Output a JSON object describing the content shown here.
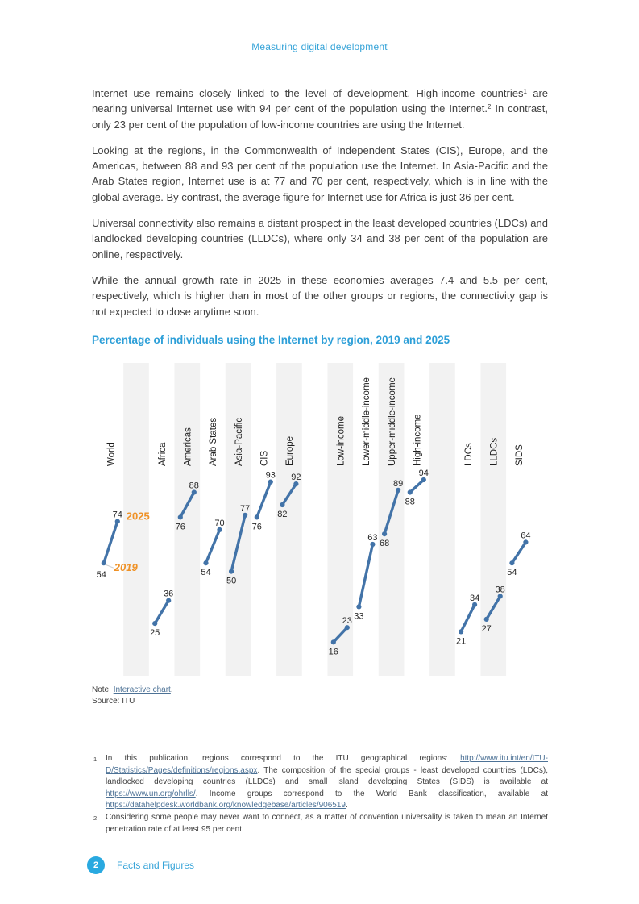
{
  "page": {
    "header": "Measuring digital development",
    "footer": {
      "page_number": "2",
      "label": "Facts and Figures"
    }
  },
  "article": {
    "p1_runs": [
      {
        "t": "Internet use remains closely linked to the level of development. High-income countries"
      },
      {
        "sup": "1"
      },
      {
        "t": " are nearing universal Internet use with 94 per cent of the population using the Internet."
      },
      {
        "sup": "2"
      },
      {
        "t": " In contrast, only 23 per cent of the population of low-income countries are using the Internet."
      }
    ],
    "p2": "Looking at the regions, in the Commonwealth of Independent States (CIS), Europe, and the Americas, between 88 and 93 per cent of the population use the Internet. In Asia-Pacific and the Arab States region, Internet use is at 77 and 70 per cent, respectively, which is in line with the global average. By contrast, the average figure for Internet use for Africa is just 36 per cent.",
    "p3": "Universal connectivity also remains a distant prospect in the least developed countries (LDCs) and landlocked developing countries (LLDCs), where only 34 and 38 per cent of the population are online, respectively.",
    "p4": "While the annual growth rate in 2025 in these economies averages 7.4 and 5.5 per cent, respectively, which is higher than in most of the other groups or regions, the connectivity gap is not expected to close anytime soon."
  },
  "chart_data": {
    "type": "slope",
    "title": "Percentage of individuals using the Internet by region, 2019 and 2025",
    "years": [
      "2019",
      "2025"
    ],
    "value_unit": "per cent of individuals using the Internet",
    "value_range": [
      0,
      100
    ],
    "grid": "alternating vertical stripes, no axes",
    "series": [
      {
        "label": "World",
        "col": 0,
        "v2019": 54,
        "v2025": 74,
        "annotate": true
      },
      {
        "label": "Africa",
        "col": 2,
        "v2019": 25,
        "v2025": 36
      },
      {
        "label": "Americas",
        "col": 3,
        "v2019": 76,
        "v2025": 88
      },
      {
        "label": "Arab States",
        "col": 4,
        "v2019": 54,
        "v2025": 70
      },
      {
        "label": "Asia-Pacific",
        "col": 5,
        "v2019": 50,
        "v2025": 77
      },
      {
        "label": "CIS",
        "col": 6,
        "v2019": 76,
        "v2025": 93
      },
      {
        "label": "Europe",
        "col": 7,
        "v2019": 82,
        "v2025": 92
      },
      {
        "label": "Low-income",
        "col": 9,
        "v2019": 16,
        "v2025": 23
      },
      {
        "label": "Lower-middle-income",
        "col": 10,
        "v2019": 33,
        "v2025": 63
      },
      {
        "label": "Upper-middle-income",
        "col": 11,
        "v2019": 68,
        "v2025": 89
      },
      {
        "label": "High-income",
        "col": 12,
        "v2019": 88,
        "v2025": 94
      },
      {
        "label": "LDCs",
        "col": 14,
        "v2019": 21,
        "v2025": 34
      },
      {
        "label": "LLDCs",
        "col": 15,
        "v2019": 27,
        "v2025": 38
      },
      {
        "label": "SIDS",
        "col": 16,
        "v2019": 54,
        "v2025": 64
      }
    ],
    "colors": {
      "line": "#4273a8",
      "stripe": "#f2f2f2",
      "annotation": "#ef9227",
      "value_label": "#262626",
      "category_label": "#1f1f1f"
    }
  },
  "note": {
    "runs": [
      {
        "t": "Note: "
      },
      {
        "link": "Interactive chart",
        "name": "interactive-chart-link"
      },
      {
        "t": "."
      }
    ],
    "source": "Source: ITU"
  },
  "footnotes": [
    {
      "num": "1",
      "runs": [
        {
          "t": "In this publication, regions correspond to the ITU geographical regions: "
        },
        {
          "link": "http://www.itu.int/en/ITU-D/Statistics/Pages/definitions/regions.aspx",
          "name": "itu-regions-link"
        },
        {
          "t": ". The composition of the special groups - least developed countries (LDCs), landlocked developing countries (LLDCs) and small island developing States (SIDS) is available at "
        },
        {
          "link": "https://www.un.org/ohrlls/",
          "name": "un-ohrlls-link"
        },
        {
          "t": ". Income groups correspond to the World Bank classification, available at "
        },
        {
          "link": "https://datahelpdesk.worldbank.org/knowledgebase/articles/906519",
          "name": "worldbank-classification-link"
        },
        {
          "t": "."
        }
      ]
    },
    {
      "num": "2",
      "runs": [
        {
          "t": "Considering some people may never want to connect, as a matter of convention universality is taken to mean an Internet penetration rate of at least 95 per cent."
        }
      ]
    }
  ]
}
